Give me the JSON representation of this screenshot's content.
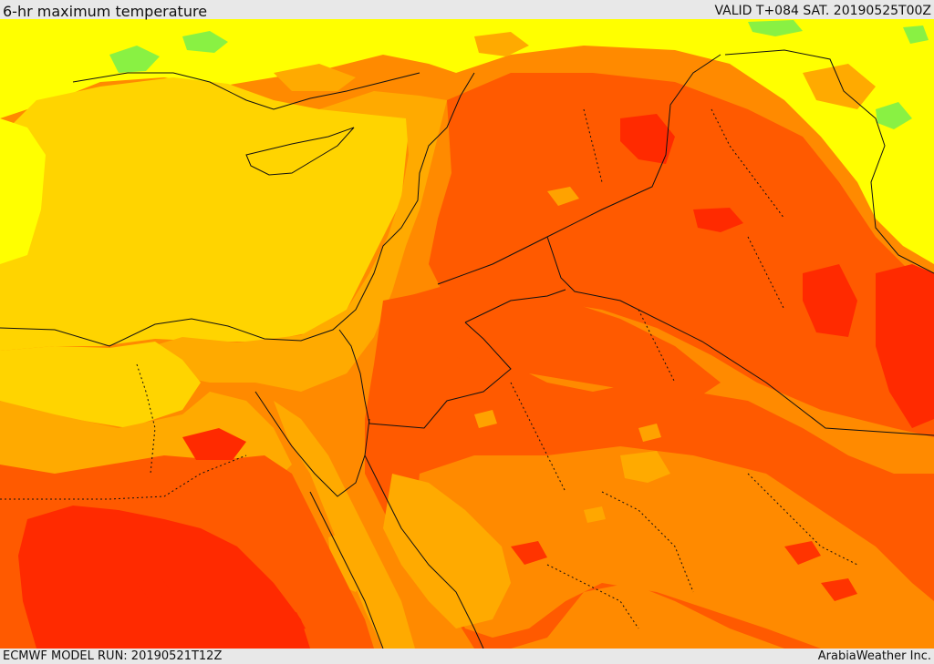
{
  "header": {
    "title": "6-hr maximum temperature",
    "valid": "VALID T+084 SAT. 20190525T00Z"
  },
  "footer": {
    "model_run": "ECMWF MODEL RUN: 20190521T12Z",
    "credit": "ArabiaWeather Inc."
  },
  "colors": {
    "green": "#7cf04a",
    "yellow_green": "#d8f000",
    "yellow": "#ffff00",
    "gold": "#ffd400",
    "amber": "#ffaa00",
    "orange": "#ff8a00",
    "red_orange": "#ff5a00",
    "red": "#ff2a00",
    "border_line": "#111111"
  }
}
